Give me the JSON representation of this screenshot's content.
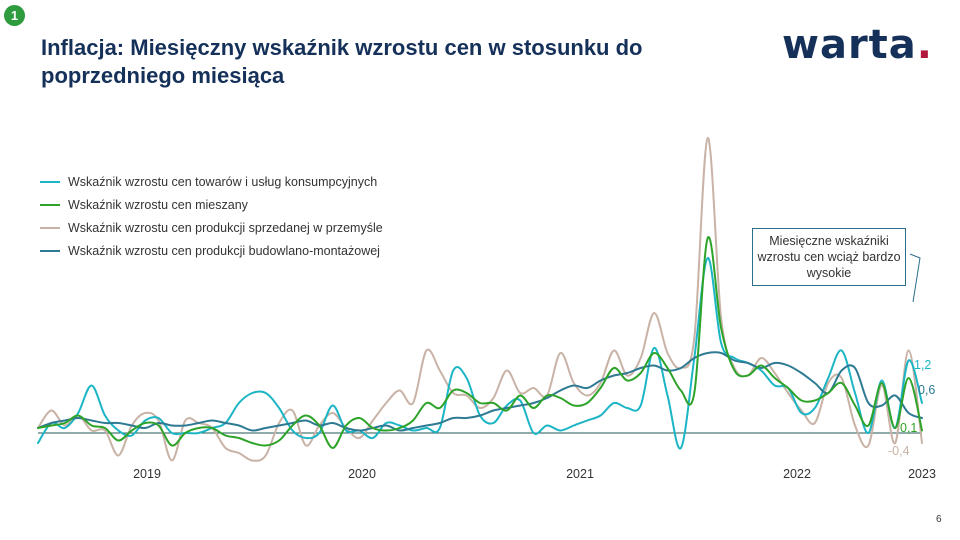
{
  "slide": {
    "badge": "1",
    "title": "Inflacja: Miesięczny wskaźnik wzrostu cen w stosunku do poprzedniego miesiąca",
    "logo_text": "warta",
    "logo_dot": ".",
    "callout": "Miesięczne wskaźniki wzrostu cen wciąż bardzo wysokie",
    "page_number": "6"
  },
  "colors": {
    "consumer": "#1bb5c5",
    "mixed": "#2ea32a",
    "industry": "#c9b2a6",
    "construction": "#2e7a93",
    "axis": "#1f5a55",
    "brand": "#15315a",
    "brand_dot": "#b0183c"
  },
  "chart_data": {
    "type": "line",
    "x_start": "2018-06",
    "x_end": "2023-01",
    "x_ticks": [
      "2019",
      "2020",
      "2021",
      "2022",
      "2023"
    ],
    "ylim": [
      -1.2,
      12.5
    ],
    "grid": false,
    "legend": "top-left",
    "series": [
      {
        "name": "Wskaźnik wzrostu cen towarów i usług konsumpcyjnych",
        "color_key": "consumer",
        "values": [
          -0.4,
          0.4,
          0.2,
          0.8,
          1.9,
          0.7,
          0.1,
          -0.1,
          0.5,
          0.6,
          0.0,
          0.0,
          0.0,
          0.2,
          0.4,
          1.2,
          1.6,
          1.6,
          1.0,
          0.1,
          -0.2,
          0.0,
          1.1,
          0.1,
          0.1,
          -0.2,
          0.4,
          0.3,
          0.1,
          0.2,
          0.2,
          2.5,
          2.2,
          0.7,
          0.4,
          1.1,
          1.3,
          0.0,
          0.3,
          0.1,
          0.3,
          0.5,
          0.7,
          1.2,
          1.0,
          1.1,
          3.4,
          1.5,
          -0.6,
          3.0,
          7.0,
          3.6,
          3.0,
          2.8,
          2.5,
          1.9,
          1.8,
          0.8,
          1.0,
          2.2,
          3.3,
          1.6,
          0.0,
          2.1,
          0.2,
          2.9,
          1.2
        ]
      },
      {
        "name": "Wskaźnik wzrostu cen mieszany",
        "color_key": "mixed",
        "values": [
          0.2,
          0.3,
          0.4,
          0.7,
          0.3,
          0.2,
          -0.3,
          0.1,
          0.4,
          0.3,
          -0.5,
          0.0,
          0.2,
          0.2,
          -0.1,
          -0.2,
          -0.4,
          -0.5,
          -0.3,
          0.3,
          0.7,
          0.3,
          -0.6,
          0.3,
          0.6,
          0.2,
          0.1,
          0.2,
          0.5,
          1.2,
          1.0,
          1.7,
          1.6,
          1.2,
          1.2,
          0.9,
          1.5,
          1.0,
          1.5,
          1.4,
          1.1,
          1.2,
          1.8,
          2.6,
          2.1,
          2.4,
          3.2,
          2.6,
          1.7,
          1.6,
          7.8,
          4.2,
          2.5,
          2.3,
          2.7,
          2.2,
          1.8,
          1.3,
          1.3,
          1.6,
          2.0,
          1.1,
          0.3,
          2.0,
          0.2,
          2.2,
          0.1
        ]
      },
      {
        "name": "Wskaźnik wzrostu cen produkcji sprzedanej w przemyśle",
        "color_key": "industry",
        "values": [
          0.2,
          0.9,
          0.3,
          0.7,
          0.1,
          0.1,
          -0.9,
          0.3,
          0.8,
          0.5,
          -1.1,
          0.5,
          0.4,
          0.2,
          -0.6,
          -0.8,
          -1.1,
          -0.9,
          0.4,
          0.9,
          -0.5,
          0.3,
          0.8,
          0.2,
          -0.2,
          0.5,
          1.2,
          1.7,
          1.2,
          3.3,
          2.5,
          1.6,
          1.5,
          1.0,
          1.4,
          2.5,
          1.6,
          1.8,
          1.5,
          3.2,
          2.0,
          1.5,
          2.0,
          3.3,
          2.3,
          3.0,
          4.8,
          3.2,
          2.6,
          3.8,
          11.8,
          4.6,
          2.6,
          2.3,
          3.0,
          2.4,
          1.6,
          0.9,
          0.4,
          2.0,
          2.2,
          0.3,
          -0.5,
          1.9,
          -0.4,
          3.3,
          -0.4
        ]
      },
      {
        "name": "Wskaźnik wzrostu cen produkcji budowlano-montażowej",
        "color_key": "construction",
        "values": [
          0.2,
          0.4,
          0.5,
          0.6,
          0.5,
          0.4,
          0.4,
          0.3,
          0.2,
          0.4,
          0.3,
          0.3,
          0.4,
          0.5,
          0.4,
          0.3,
          0.1,
          0.2,
          0.3,
          0.4,
          0.5,
          0.3,
          0.4,
          0.2,
          0.1,
          0.2,
          0.3,
          0.1,
          0.2,
          0.3,
          0.4,
          0.6,
          0.6,
          0.7,
          0.9,
          1.0,
          1.1,
          1.2,
          1.4,
          1.7,
          1.9,
          1.8,
          2.1,
          2.3,
          2.4,
          2.6,
          2.7,
          2.5,
          2.6,
          3.0,
          3.2,
          3.2,
          2.9,
          2.8,
          2.6,
          2.8,
          2.7,
          2.4,
          2.0,
          1.6,
          2.5,
          2.6,
          1.2,
          1.1,
          1.5,
          0.8,
          0.6
        ]
      }
    ],
    "end_labels": [
      {
        "text": "1,2",
        "color_key": "consumer",
        "value": 1.2
      },
      {
        "text": "0,6",
        "color_key": "construction",
        "value": 0.6
      },
      {
        "text": "0,1",
        "color_key": "mixed",
        "value": 0.1
      },
      {
        "text": "-0,4",
        "color_key": "industry",
        "value": -0.4
      }
    ]
  }
}
